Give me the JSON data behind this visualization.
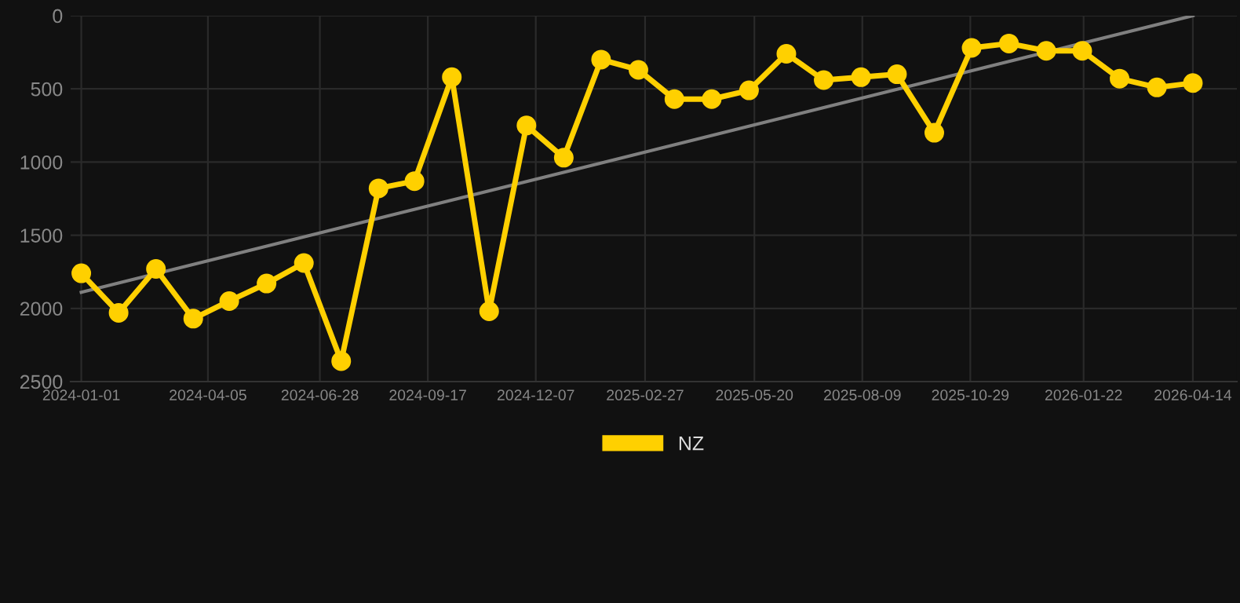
{
  "chart_data": {
    "type": "line",
    "legend": "bottom",
    "grid": true,
    "marker": "circle",
    "line_style": "solid",
    "x": [
      "2024-01-01",
      "2024-01-29",
      "2024-02-26",
      "2024-03-25",
      "2024-04-21",
      "2024-05-19",
      "2024-06-16",
      "2024-07-14",
      "2024-08-11",
      "2024-09-07",
      "2024-10-05",
      "2024-11-02",
      "2024-11-30",
      "2024-12-28",
      "2025-01-25",
      "2025-02-22",
      "2025-03-21",
      "2025-04-18",
      "2025-05-16",
      "2025-06-13",
      "2025-07-11",
      "2025-08-08",
      "2025-09-04",
      "2025-10-02",
      "2025-10-30",
      "2025-11-27",
      "2025-12-25",
      "2026-01-21",
      "2026-02-18",
      "2026-03-18",
      "2026-04-14"
    ],
    "series": [
      {
        "name": "NZ",
        "color": "#ffd000",
        "values": [
          1760,
          2030,
          1730,
          2070,
          1950,
          1830,
          1690,
          2360,
          1180,
          1130,
          420,
          2020,
          750,
          970,
          300,
          370,
          570,
          570,
          510,
          260,
          440,
          420,
          400,
          800,
          220,
          190,
          240,
          240,
          430,
          490,
          460
        ]
      },
      {
        "type": "line",
        "color": "#808080",
        "marker": "none",
        "x": [
          "2024-01-01",
          "2026-04-14"
        ],
        "values": [
          1890,
          0
        ]
      }
    ],
    "xlim": [
      "2023-12-24",
      "2026-05-17"
    ],
    "xticks": [
      "2024-01-01",
      "2024-04-05",
      "2024-06-28",
      "2024-09-17",
      "2024-12-07",
      "2025-02-27",
      "2025-05-20",
      "2025-08-09",
      "2025-10-29",
      "2026-01-22",
      "2026-04-14"
    ],
    "ylim": [
      2500,
      0
    ],
    "yticks": [
      0,
      500,
      1000,
      1500,
      2000,
      2500
    ]
  }
}
